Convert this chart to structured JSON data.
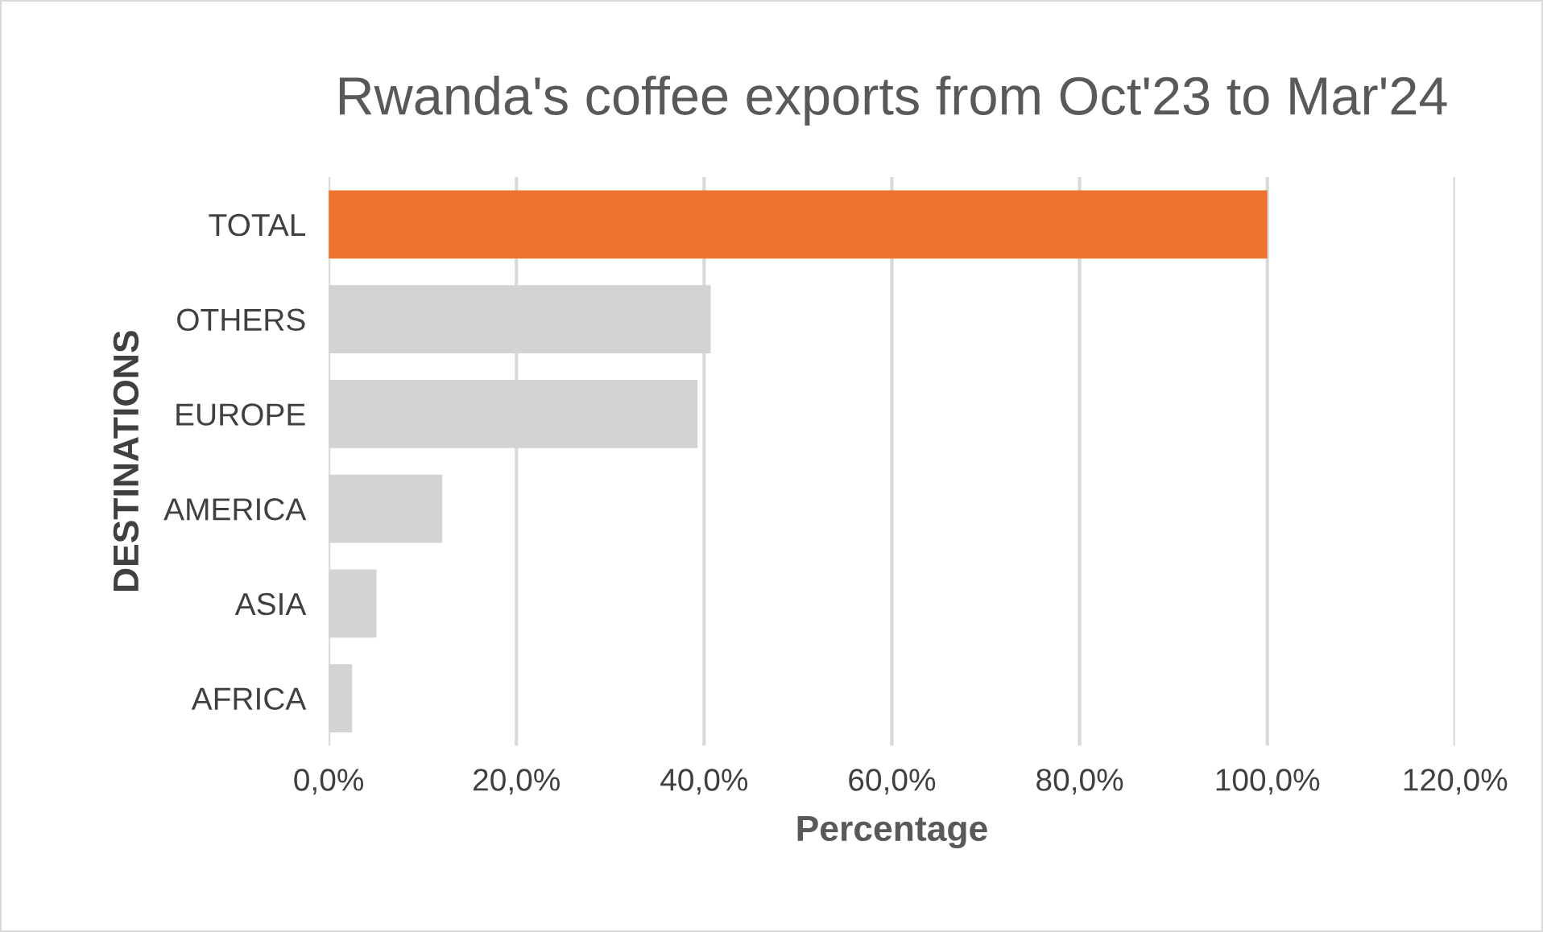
{
  "chart_data": {
    "type": "bar",
    "orientation": "horizontal",
    "title": "Rwanda's coffee exports from Oct'23 to Mar'24",
    "xlabel": "Percentage",
    "ylabel": "DESTINATIONS",
    "categories": [
      "TOTAL",
      "OTHERS",
      "EUROPE",
      "AMERICA",
      "ASIA",
      "AFRICA"
    ],
    "values": [
      100,
      40.7,
      39.3,
      12.1,
      5.1,
      2.5
    ],
    "colors": [
      "#ed7331",
      "#d3d3d3",
      "#d3d3d3",
      "#d3d3d3",
      "#d3d3d3",
      "#d3d3d3"
    ],
    "xlim": [
      0,
      120
    ],
    "xticks": [
      {
        "value": 0,
        "label": "0,0%"
      },
      {
        "value": 20,
        "label": "20,0%"
      },
      {
        "value": 40,
        "label": "40,0%"
      },
      {
        "value": 60,
        "label": "60,0%"
      },
      {
        "value": 80,
        "label": "80,0%"
      },
      {
        "value": 100,
        "label": "100,0%"
      },
      {
        "value": 120,
        "label": "120,0%"
      }
    ],
    "grid": "x",
    "legend": false
  }
}
